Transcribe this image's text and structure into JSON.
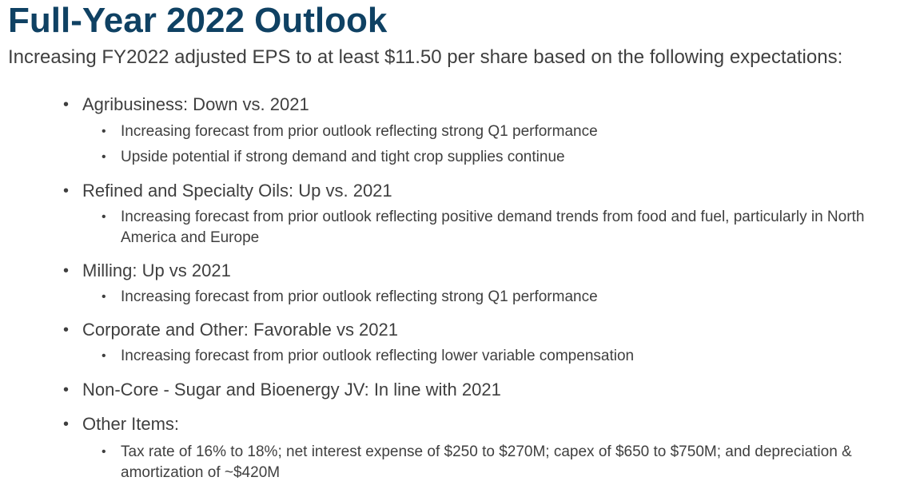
{
  "slide": {
    "title": "Full-Year 2022 Outlook",
    "subtitle": "Increasing FY2022 adjusted EPS to at least $11.50 per share based on the following expectations:",
    "bullet_char": "•",
    "items": [
      {
        "label": "Agribusiness: Down vs. 2021",
        "subitems": [
          "Increasing forecast from prior outlook reflecting strong Q1 performance",
          "Upside potential if strong demand and tight crop supplies continue"
        ]
      },
      {
        "label": "Refined and Specialty Oils: Up vs. 2021",
        "subitems": [
          "Increasing forecast from prior outlook reflecting positive demand trends from food and fuel, particularly in North America and Europe"
        ]
      },
      {
        "label": "Milling: Up vs 2021",
        "subitems": [
          "Increasing forecast from prior outlook reflecting strong Q1 performance"
        ]
      },
      {
        "label": "Corporate and Other: Favorable vs 2021",
        "subitems": [
          "Increasing forecast from prior outlook reflecting lower variable compensation"
        ]
      },
      {
        "label": "Non-Core - Sugar and Bioenergy JV: In line with 2021",
        "subitems": []
      },
      {
        "label": "Other Items:",
        "subitems": [
          "Tax rate of 16% to 18%; net interest expense of $250 to $270M; capex of $650 to $750M; and depreciation & amortization of ~$420M"
        ]
      }
    ]
  }
}
